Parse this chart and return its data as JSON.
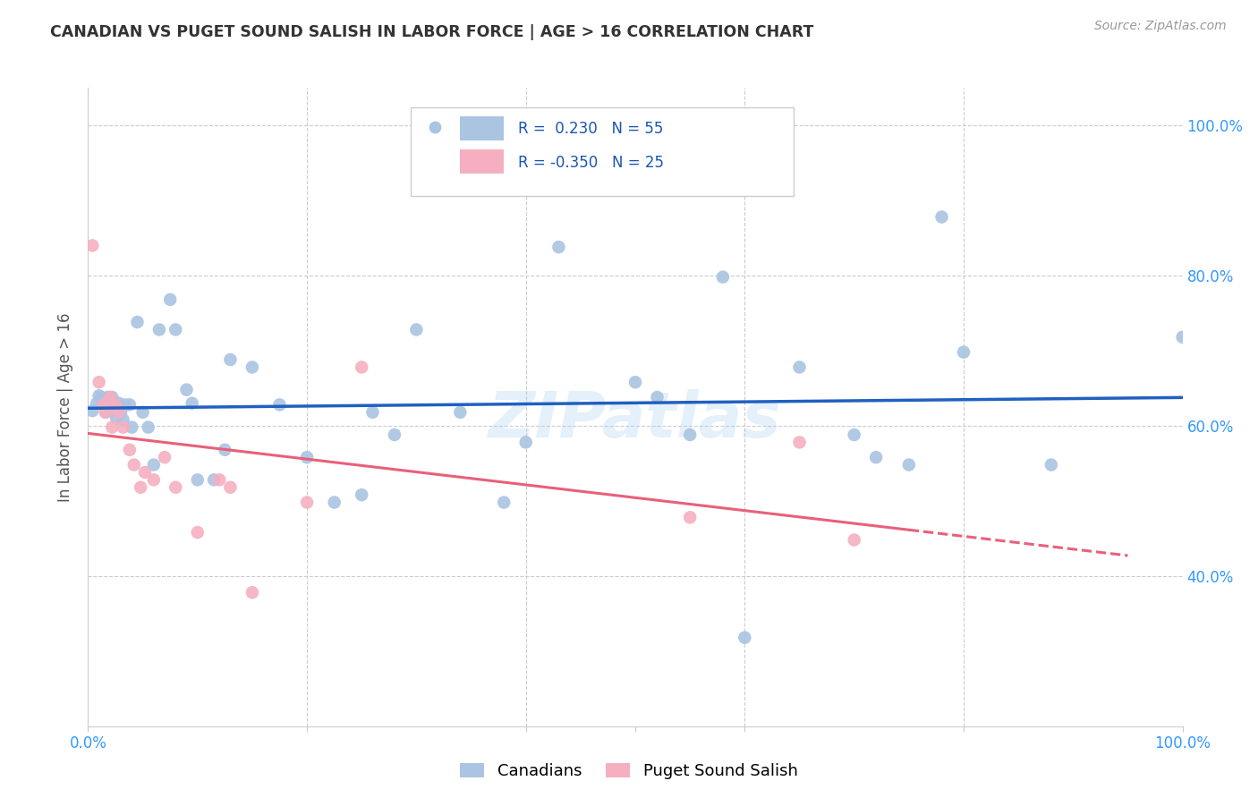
{
  "title": "CANADIAN VS PUGET SOUND SALISH IN LABOR FORCE | AGE > 16 CORRELATION CHART",
  "source": "Source: ZipAtlas.com",
  "ylabel": "In Labor Force | Age > 16",
  "xlim": [
    0.0,
    1.0
  ],
  "ylim": [
    0.2,
    1.05
  ],
  "ytick_positions": [
    0.4,
    0.6,
    0.8,
    1.0
  ],
  "ytick_labels_right": [
    "40.0%",
    "60.0%",
    "80.0%",
    "100.0%"
  ],
  "blue_R": 0.23,
  "blue_N": 55,
  "pink_R": -0.35,
  "pink_N": 25,
  "blue_color": "#aac4e2",
  "pink_color": "#f5afc0",
  "blue_line_color": "#2060c0",
  "pink_line_color": "#e8607a",
  "legend_blue_label": "Canadians",
  "legend_pink_label": "Puget Sound Salish",
  "blue_points_x": [
    0.004,
    0.008,
    0.01,
    0.012,
    0.014,
    0.016,
    0.018,
    0.02,
    0.022,
    0.024,
    0.026,
    0.028,
    0.03,
    0.032,
    0.034,
    0.038,
    0.04,
    0.045,
    0.05,
    0.055,
    0.06,
    0.065,
    0.075,
    0.08,
    0.09,
    0.095,
    0.1,
    0.115,
    0.125,
    0.13,
    0.15,
    0.175,
    0.2,
    0.225,
    0.25,
    0.26,
    0.28,
    0.3,
    0.34,
    0.38,
    0.4,
    0.43,
    0.5,
    0.52,
    0.55,
    0.58,
    0.6,
    0.65,
    0.7,
    0.72,
    0.75,
    0.78,
    0.8,
    0.88,
    1.0
  ],
  "blue_points_y": [
    0.62,
    0.63,
    0.64,
    0.638,
    0.628,
    0.618,
    0.638,
    0.62,
    0.638,
    0.625,
    0.61,
    0.63,
    0.618,
    0.608,
    0.628,
    0.628,
    0.598,
    0.738,
    0.618,
    0.598,
    0.548,
    0.728,
    0.768,
    0.728,
    0.648,
    0.63,
    0.528,
    0.528,
    0.568,
    0.688,
    0.678,
    0.628,
    0.558,
    0.498,
    0.508,
    0.618,
    0.588,
    0.728,
    0.618,
    0.498,
    0.578,
    0.838,
    0.658,
    0.638,
    0.588,
    0.798,
    0.318,
    0.678,
    0.588,
    0.558,
    0.548,
    0.878,
    0.698,
    0.548,
    0.718
  ],
  "pink_points_x": [
    0.004,
    0.01,
    0.014,
    0.016,
    0.02,
    0.022,
    0.025,
    0.028,
    0.032,
    0.038,
    0.042,
    0.048,
    0.052,
    0.06,
    0.07,
    0.08,
    0.1,
    0.12,
    0.13,
    0.15,
    0.2,
    0.25,
    0.55,
    0.65,
    0.7
  ],
  "pink_points_y": [
    0.84,
    0.658,
    0.628,
    0.618,
    0.638,
    0.598,
    0.628,
    0.618,
    0.598,
    0.568,
    0.548,
    0.518,
    0.538,
    0.528,
    0.558,
    0.518,
    0.458,
    0.528,
    0.518,
    0.378,
    0.498,
    0.678,
    0.478,
    0.578,
    0.448
  ],
  "watermark_text": "ZIPatlas",
  "grid_color": "#cccccc",
  "background_color": "#ffffff",
  "pink_line_xlim": [
    0.0,
    0.75
  ],
  "pink_line_dash_xlim": [
    0.75,
    0.95
  ]
}
